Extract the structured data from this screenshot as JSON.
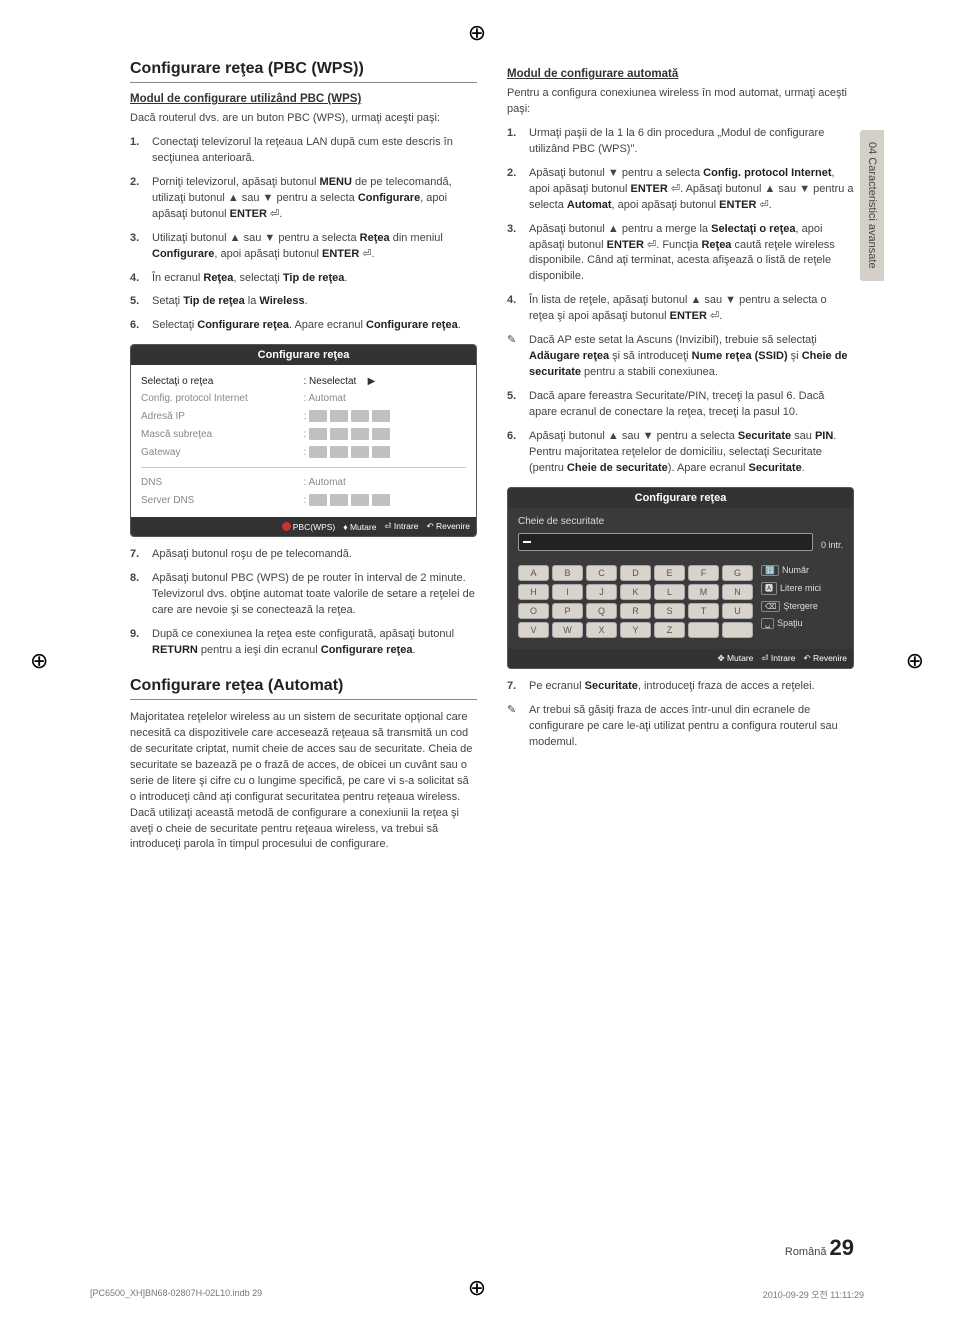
{
  "side_tab": "04   Caracteristici avansate",
  "crosshair_glyph": "⊕",
  "left": {
    "h1": "Configurare reţea (PBC (WPS))",
    "sub1": "Modul de configurare utilizând PBC (WPS)",
    "intro1": "Dacă routerul dvs. are un buton PBC (WPS), urmaţi aceşti paşi:",
    "steps1": [
      "Conectaţi televizorul la reţeaua LAN după cum este descris în secţiunea anterioară.",
      "Porniţi televizorul, apăsaţi butonul <b>MENU</b> de pe telecomandă, utilizaţi butonul ▲ sau ▼ pentru a selecta <b>Configurare</b>, apoi apăsaţi butonul <b>ENTER</b> ⏎.",
      "Utilizaţi butonul ▲ sau ▼ pentru a selecta <b>Reţea</b> din meniul <b>Configurare</b>, apoi apăsaţi butonul <b>ENTER</b> ⏎.",
      "În ecranul <b>Reţea</b>, selectaţi <b>Tip de reţea</b>.",
      "Setaţi <b>Tip de reţea</b> la <b>Wireless</b>.",
      "Selectaţi <b>Configurare reţea</b>. Apare ecranul <b>Configurare reţea</b>."
    ],
    "panel1": {
      "title": "Configurare reţea",
      "rows": [
        {
          "label": "Selectaţi o reţea",
          "value": ": Neselectat",
          "hi": true,
          "arrow": true
        },
        {
          "label": "Config. protocol Internet",
          "value": ": Automat"
        },
        {
          "label": "Adresă IP",
          "ip": true
        },
        {
          "label": "Mască subreţea",
          "ip": true
        },
        {
          "label": "Gateway",
          "ip": true
        }
      ],
      "rows2": [
        {
          "label": "DNS",
          "value": ": Automat"
        },
        {
          "label": "Server DNS",
          "ip": true
        }
      ],
      "foot": [
        {
          "icon": "red",
          "text": "PBC(WPS)"
        },
        {
          "icon": "updown",
          "text": "Mutare"
        },
        {
          "icon": "enter",
          "text": "Intrare"
        },
        {
          "icon": "return",
          "text": "Revenire"
        }
      ]
    },
    "steps2": [
      {
        "n": "7",
        "t": "Apăsaţi butonul roşu de pe telecomandă."
      },
      {
        "n": "8",
        "t": "Apăsaţi butonul PBC (WPS) de pe router în interval de 2 minute. Televizorul dvs. obţine automat toate valorile de setare a reţelei de care are nevoie şi se conectează la reţea."
      },
      {
        "n": "9",
        "t": "După ce conexiunea la reţea este configurată, apăsaţi butonul <b>RETURN</b> pentru a ieşi din ecranul <b>Configurare reţea</b>."
      }
    ],
    "h2": "Configurare reţea (Automat)",
    "para2": "Majoritatea reţelelor wireless au un sistem de securitate opţional care necesită ca dispozitivele care accesează reţeaua să transmită un cod de securitate criptat, numit cheie de acces sau de securitate. Cheia de securitate se bazează pe o frază de acces, de obicei un cuvânt sau o serie de litere şi cifre cu o lungime specifică, pe care vi s-a solicitat să o introduceţi când aţi configurat securitatea pentru reţeaua wireless.  Dacă utilizaţi această metodă de configurare a conexiunii la reţea şi aveţi o cheie de securitate pentru reţeaua wireless, va trebui să introduceţi parola în timpul procesului de configurare."
  },
  "right": {
    "sub1": "Modul de configurare automată",
    "intro1": "Pentru a configura conexiunea wireless în mod automat, urmaţi aceşti paşi:",
    "steps1": [
      {
        "n": "1",
        "t": "Urmaţi paşii de la 1 la 6 din procedura „Modul de configurare utilizând PBC (WPS)\"."
      },
      {
        "n": "2",
        "t": "Apăsaţi butonul ▼ pentru a selecta <b>Config. protocol Internet</b>, apoi apăsaţi butonul <b>ENTER</b> ⏎. Apăsaţi butonul ▲ sau ▼ pentru a selecta <b>Automat</b>, apoi apăsaţi butonul <b>ENTER</b> ⏎."
      },
      {
        "n": "3",
        "t": "Apăsaţi butonul ▲ pentru a merge la <b>Selectaţi o reţea</b>, apoi apăsaţi butonul <b>ENTER</b> ⏎. Funcţia <b>Reţea</b> caută reţele wireless disponibile. Când aţi terminat, acesta afişează o listă de reţele disponibile."
      },
      {
        "n": "4",
        "t": "În lista de reţele, apăsaţi butonul ▲ sau ▼ pentru a selecta o reţea şi apoi apăsaţi butonul <b>ENTER</b> ⏎."
      }
    ],
    "note1": "Dacă AP este setat la Ascuns (Invizibil), trebuie să selectaţi <b>Adăugare reţea</b> şi să introduceţi <b>Nume reţea (SSID)</b> şi <b>Cheie de securitate</b> pentru a stabili conexiunea.",
    "steps2": [
      {
        "n": "5",
        "t": "Dacă apare fereastra Securitate/PIN, treceţi la pasul 6. Dacă apare ecranul de conectare la reţea, treceţi la pasul 10."
      },
      {
        "n": "6",
        "t": "Apăsaţi butonul ▲ sau ▼ pentru a selecta <b>Securitate</b> sau <b>PIN</b>. Pentru majoritatea reţelelor de domiciliu, selectaţi Securitate (pentru <b>Cheie de securitate</b>). Apare ecranul <b>Securitate</b>."
      }
    ],
    "panel2": {
      "title": "Configurare reţea",
      "field_label": "Cheie de securitate",
      "counter": "0 intr.",
      "keys": [
        [
          "A",
          "B",
          "C",
          "D",
          "E",
          "F",
          "G"
        ],
        [
          "H",
          "I",
          "J",
          "K",
          "L",
          "M",
          "N"
        ],
        [
          "O",
          "P",
          "Q",
          "R",
          "S",
          "T",
          "U"
        ],
        [
          "V",
          "W",
          "X",
          "Y",
          "Z",
          " ",
          " "
        ]
      ],
      "side": [
        {
          "icon": "num",
          "text": "Număr"
        },
        {
          "icon": "case",
          "text": "Litere mici"
        },
        {
          "icon": "del",
          "text": "Ştergere"
        },
        {
          "icon": "space",
          "text": "Spaţiu"
        }
      ],
      "foot": [
        {
          "icon": "move",
          "text": "Mutare"
        },
        {
          "icon": "enter",
          "text": "Intrare"
        },
        {
          "icon": "return",
          "text": "Revenire"
        }
      ]
    },
    "steps3": [
      {
        "n": "7",
        "t": "Pe ecranul <b>Securitate</b>, introduceţi fraza de acces a reţelei."
      }
    ],
    "note2": "Ar trebui să găsiţi fraza de acces într-unul din ecranele de configurare pe care le-aţi utilizat pentru a configura routerul sau modemul."
  },
  "footer": {
    "lang": "Română",
    "page": "29"
  },
  "printfoot": {
    "left": "[PC6500_XH]BN68-02807H-02L10.indb   29",
    "right": "2010-09-29   오전 11:11:29"
  }
}
